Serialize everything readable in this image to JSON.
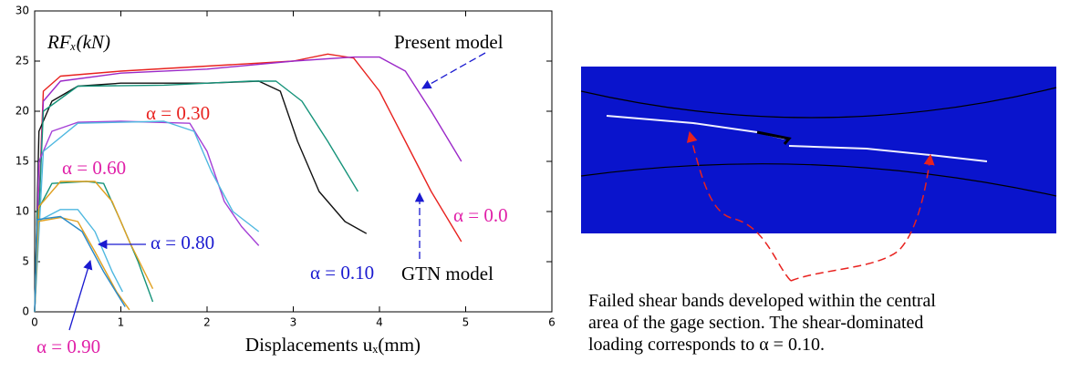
{
  "chart_data": {
    "type": "line",
    "y_label": "RFₓ(kN)",
    "x_label": "Displacements uₓ(mm)",
    "xlim": [
      0,
      6
    ],
    "xticks": [
      0,
      1,
      2,
      3,
      4,
      5,
      6
    ],
    "ylim": [
      0,
      30
    ],
    "yticks": [
      0,
      5,
      10,
      15,
      20,
      25,
      30
    ],
    "series": [
      {
        "color": "#e8221f",
        "x": [
          0,
          0.1,
          0.3,
          1,
          2,
          3,
          3.4,
          3.7,
          4.0,
          4.3,
          4.6,
          4.95
        ],
        "values": [
          0,
          22,
          23.5,
          24,
          24.5,
          25,
          25.7,
          25.3,
          22,
          17,
          12,
          7
        ]
      },
      {
        "color": "#9b28c8",
        "x": [
          0,
          0.1,
          0.3,
          1,
          2,
          3,
          3.7,
          4.0,
          4.3,
          4.6,
          4.95
        ],
        "values": [
          0,
          21,
          23,
          23.8,
          24.2,
          25,
          25.4,
          25.4,
          24,
          20,
          15
        ]
      },
      {
        "color": "#111111",
        "x": [
          0,
          0.05,
          0.2,
          0.5,
          1,
          2,
          2.6,
          2.85,
          3.05,
          3.3,
          3.6,
          3.85
        ],
        "values": [
          0,
          18,
          21,
          22.5,
          22.8,
          22.8,
          23,
          22,
          17,
          12,
          9,
          7.8
        ]
      },
      {
        "color": "#16937a",
        "x": [
          0,
          0.1,
          0.5,
          1.5,
          2.5,
          2.8,
          3.1,
          3.4,
          3.75
        ],
        "values": [
          0,
          20,
          22.5,
          22.6,
          23,
          23,
          21,
          17,
          12
        ]
      },
      {
        "color": "#a43fd6",
        "x": [
          0,
          0.05,
          0.2,
          0.5,
          1,
          1.8,
          2.0,
          2.2,
          2.4,
          2.6
        ],
        "values": [
          0,
          15,
          18,
          18.9,
          19,
          18.8,
          16,
          11,
          8.5,
          6.6
        ]
      },
      {
        "color": "#4fb8e0",
        "x": [
          0,
          0.1,
          0.5,
          1.5,
          1.85,
          2.05,
          2.3,
          2.6
        ],
        "values": [
          0,
          16,
          18.8,
          19,
          18,
          14,
          10,
          8
        ]
      },
      {
        "color": "#16937a",
        "x": [
          0,
          0.03,
          0.2,
          0.6,
          0.8,
          1.0,
          1.2,
          1.37
        ],
        "values": [
          0,
          10,
          12.8,
          13,
          12.8,
          9,
          5,
          1
        ]
      },
      {
        "color": "#e0a020",
        "x": [
          0,
          0.05,
          0.3,
          0.7,
          0.9,
          1.1,
          1.37
        ],
        "values": [
          0,
          10.5,
          13,
          13,
          11,
          7,
          2.3
        ]
      },
      {
        "color": "#4fb8e0",
        "x": [
          0,
          0.03,
          0.3,
          0.5,
          0.7,
          0.9,
          1.02
        ],
        "values": [
          0,
          9,
          10.2,
          10.2,
          8,
          4,
          2
        ]
      },
      {
        "color": "#e0a020",
        "x": [
          0,
          0.03,
          0.3,
          0.5,
          0.7,
          0.95,
          1.1
        ],
        "values": [
          0,
          9,
          9.4,
          9,
          6,
          2,
          0.2
        ]
      },
      {
        "color": "#2a8ac8",
        "x": [
          0,
          0.03,
          0.3,
          0.55,
          0.8,
          1.05
        ],
        "values": [
          0,
          9.2,
          9.5,
          8,
          4,
          0.5
        ]
      }
    ],
    "annotations": [
      {
        "text": "Present model",
        "color": "#000000"
      },
      {
        "text": "GTN model",
        "color": "#000000"
      },
      {
        "text": "α = 0.30",
        "color": "#e8221f"
      },
      {
        "text": "α = 0.60",
        "color": "#e020a8"
      },
      {
        "text": "α = 0.80",
        "color": "#1a1ad0"
      },
      {
        "text": "α = 0.90",
        "color": "#e020a8"
      },
      {
        "text": "α = 0.10",
        "color": "#1a1ad0"
      },
      {
        "text": "α = 0.0",
        "color": "#e020a8"
      }
    ]
  },
  "figure_caption": {
    "lines": [
      "Failed shear bands developed within the central",
      " area of the gage section. The shear-dominated",
      "loading corresponds to α = 0.10."
    ]
  }
}
